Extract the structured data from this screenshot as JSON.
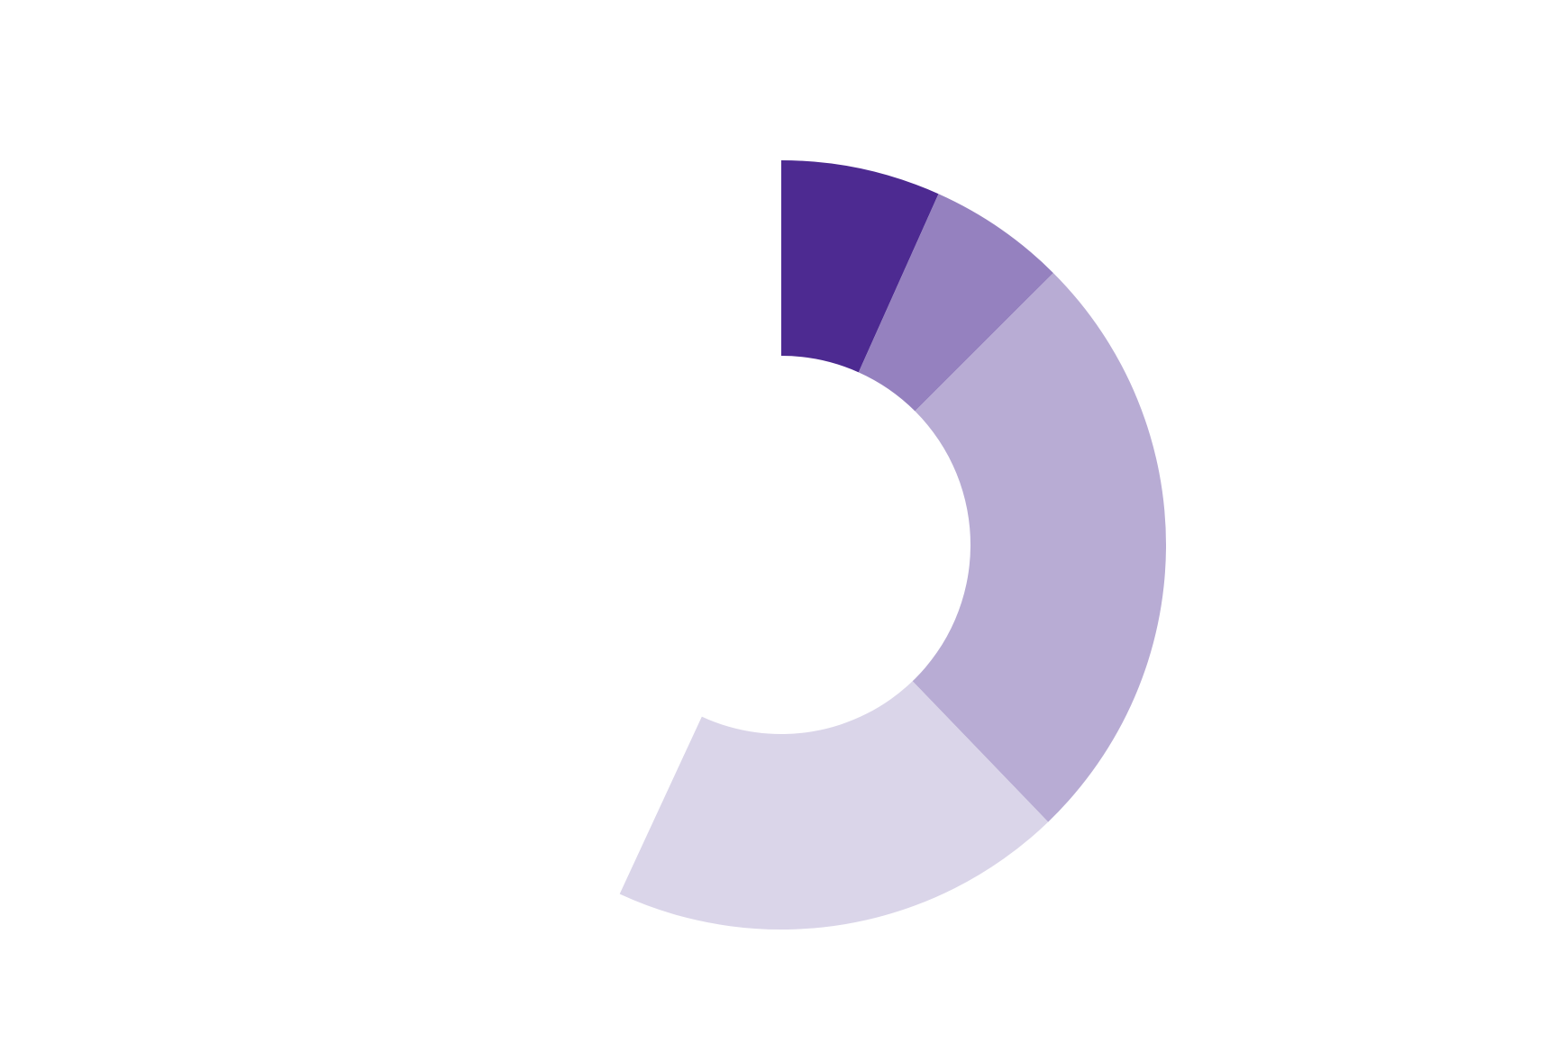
{
  "chart_data": {
    "type": "donut",
    "values": [
      6.7,
      5.8,
      25.3,
      19.1,
      43.1
    ],
    "colors": [
      "#4d2a91",
      "#9581bf",
      "#b8acd4",
      "#dad5e9",
      "#ffffff"
    ]
  }
}
